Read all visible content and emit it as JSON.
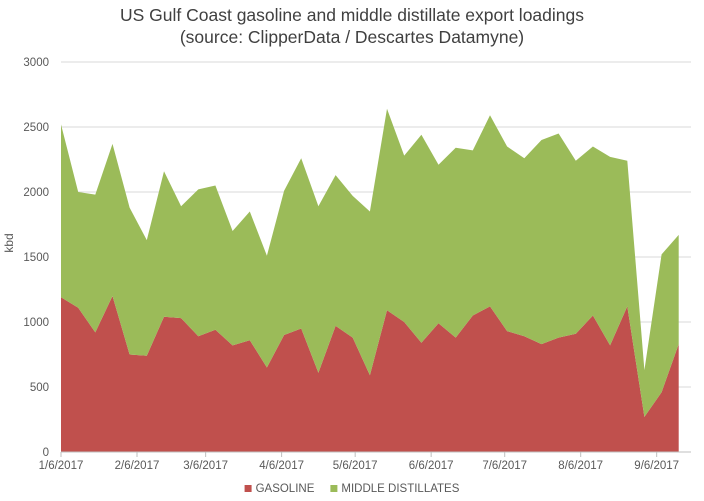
{
  "chart_data": {
    "type": "area",
    "stacked": true,
    "title": "US Gulf Coast gasoline and middle distillate export loadings",
    "subtitle": "(source: ClipperData / Descartes Datamyne)",
    "xlabel": "",
    "ylabel": "kbd",
    "ylim": [
      0,
      3000
    ],
    "yticks": [
      0,
      500,
      1000,
      1500,
      2000,
      2500,
      3000
    ],
    "xlim": [
      "2017-01-06",
      "2017-09-20"
    ],
    "xticks": [
      "2017-01-06",
      "2017-02-06",
      "2017-03-06",
      "2017-04-06",
      "2017-05-06",
      "2017-06-06",
      "2017-07-06",
      "2017-08-06",
      "2017-09-06"
    ],
    "xtick_labels": [
      "1/6/2017",
      "2/6/2017",
      "3/6/2017",
      "4/6/2017",
      "5/6/2017",
      "6/6/2017",
      "7/6/2017",
      "8/6/2017",
      "9/6/2017"
    ],
    "grid": true,
    "legend_position": "bottom",
    "x": [
      "2017-01-06",
      "2017-01-13",
      "2017-01-20",
      "2017-01-27",
      "2017-02-03",
      "2017-02-10",
      "2017-02-17",
      "2017-02-24",
      "2017-03-03",
      "2017-03-10",
      "2017-03-17",
      "2017-03-24",
      "2017-03-31",
      "2017-04-07",
      "2017-04-14",
      "2017-04-21",
      "2017-04-28",
      "2017-05-05",
      "2017-05-12",
      "2017-05-19",
      "2017-05-26",
      "2017-06-02",
      "2017-06-09",
      "2017-06-16",
      "2017-06-23",
      "2017-06-30",
      "2017-07-07",
      "2017-07-14",
      "2017-07-21",
      "2017-07-28",
      "2017-08-04",
      "2017-08-11",
      "2017-08-18",
      "2017-08-25",
      "2017-09-01",
      "2017-09-08",
      "2017-09-15"
    ],
    "series": [
      {
        "name": "GASOLINE",
        "color": "#c0504d",
        "values": [
          1190,
          1110,
          920,
          1200,
          750,
          740,
          1040,
          1030,
          890,
          940,
          820,
          860,
          650,
          900,
          950,
          610,
          970,
          880,
          590,
          1090,
          1000,
          840,
          990,
          880,
          1050,
          1120,
          930,
          890,
          830,
          880,
          910,
          1050,
          820,
          1120,
          270,
          460,
          830
        ]
      },
      {
        "name": "MIDDLE DISTILLATES",
        "color": "#9bbb59",
        "values": [
          1330,
          890,
          1060,
          1170,
          1130,
          890,
          1120,
          860,
          1130,
          1110,
          880,
          990,
          860,
          1110,
          1310,
          1280,
          1160,
          1090,
          1260,
          1550,
          1280,
          1600,
          1220,
          1460,
          1270,
          1470,
          1420,
          1370,
          1570,
          1570,
          1330,
          1300,
          1450,
          1120,
          360,
          1060,
          840
        ]
      }
    ]
  }
}
